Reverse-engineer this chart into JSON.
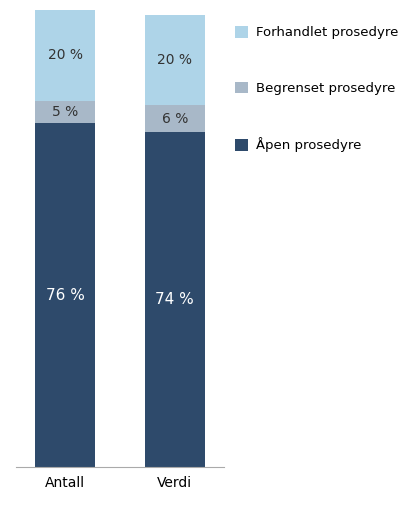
{
  "categories": [
    "Antall",
    "Verdi"
  ],
  "apen": [
    76,
    74
  ],
  "begrenset": [
    5,
    6
  ],
  "forhandlet": [
    20,
    20
  ],
  "color_apen": "#2e4a6b",
  "color_begrenset": "#a8b8c8",
  "color_forhandlet": "#aed4e8",
  "label_apen": "Åpen prosedyre",
  "label_begrenset": "Begrenset prosedyre",
  "label_forhandlet": "Forhandlet prosedyre",
  "bar_width": 0.55,
  "figsize": [
    4.0,
    5.08
  ],
  "dpi": 100,
  "pct_fontsize_large": 11,
  "pct_fontsize_small": 10,
  "legend_fontsize": 9.5,
  "tick_fontsize": 10,
  "background_color": "#ffffff",
  "text_color_white": "#ffffff",
  "text_color_dark": "#333333"
}
